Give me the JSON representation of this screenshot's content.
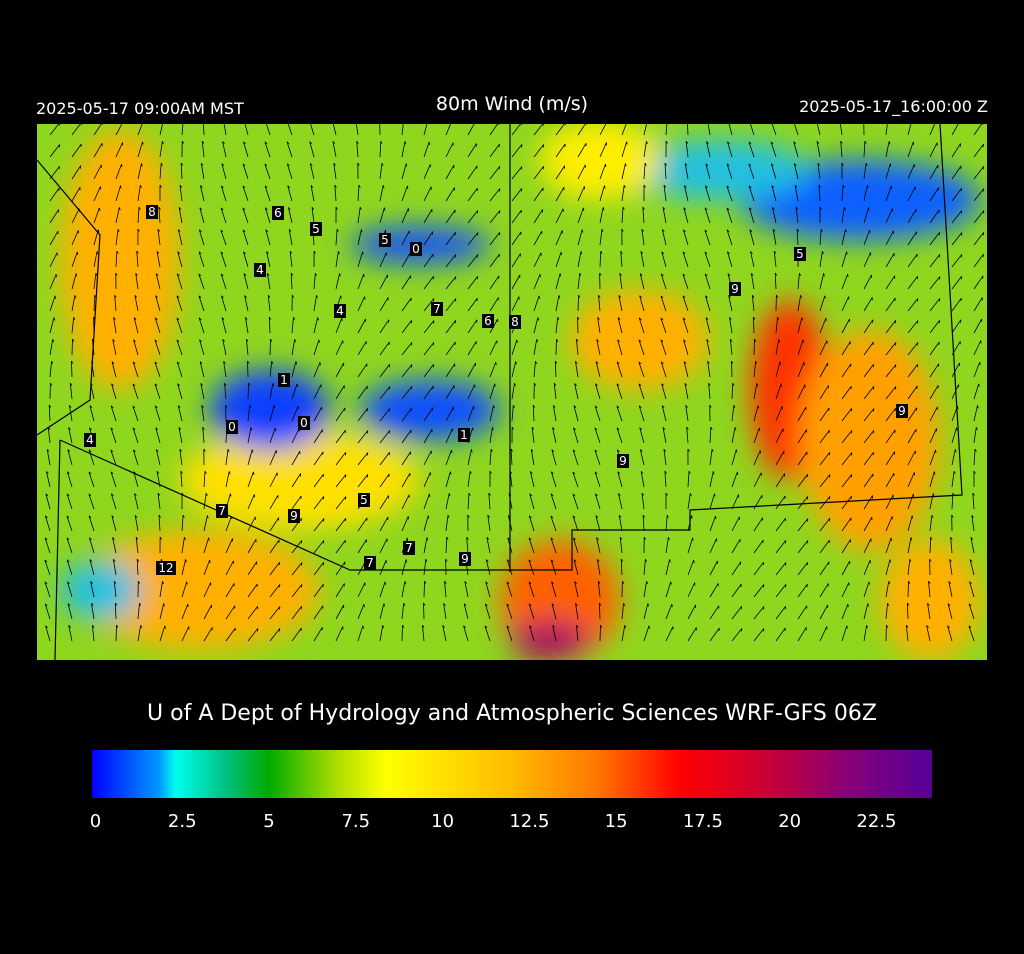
{
  "header": {
    "local_time": "2025-05-17 09:00AM MST",
    "title": "80m Wind (m/s)",
    "valid_time": "2025-05-17_16:00:00 Z"
  },
  "stations": [
    8,
    6,
    5,
    5,
    0,
    4,
    4,
    7,
    6,
    8,
    9,
    5,
    1,
    0,
    0,
    1,
    4,
    9,
    9,
    5,
    7,
    9,
    7,
    7,
    9,
    12
  ],
  "credit": "U of A Dept of Hydrology and Atmospheric Sciences WRF-GFS 06Z",
  "colorbar": {
    "range": [
      -0.1,
      24.1
    ],
    "ticks": [
      0,
      2.5,
      5,
      7.5,
      10,
      12.5,
      15,
      17.5,
      20,
      22.5
    ]
  }
}
